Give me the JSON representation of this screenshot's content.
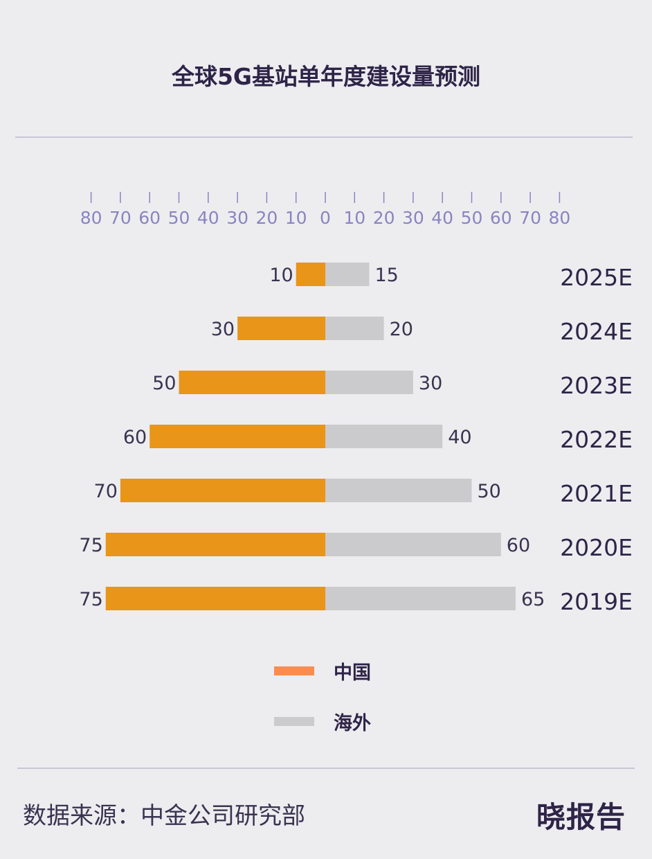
{
  "title": "全球5G基站单年度建设量预测",
  "chart_data": {
    "type": "bar",
    "orientation": "horizontal-diverging",
    "title": "全球5G基站单年度建设量预测",
    "categories": [
      "2025E",
      "2024E",
      "2023E",
      "2022E",
      "2021E",
      "2020E",
      "2019E"
    ],
    "series": [
      {
        "name": "中国",
        "values": [
          10,
          30,
          50,
          60,
          70,
          75,
          75
        ],
        "color": "#e8951a",
        "side": "left"
      },
      {
        "name": "海外",
        "values": [
          15,
          20,
          30,
          40,
          50,
          60,
          65
        ],
        "color": "#cbcbcd",
        "side": "right"
      }
    ],
    "xlim": [
      -80,
      80
    ],
    "ticks": [
      80,
      70,
      60,
      50,
      40,
      30,
      20,
      10,
      0,
      10,
      20,
      30,
      40,
      50,
      60,
      70,
      80
    ],
    "legend_position": "bottom",
    "grid": false,
    "tick_color": "#8a84c0",
    "label_color": "#3a3350",
    "category_color": "#2e2448"
  },
  "legend": [
    {
      "label": "中国",
      "color": "#fa8c50"
    },
    {
      "label": "海外",
      "color": "#cbcbcd"
    }
  ],
  "footer": {
    "source": "数据来源：中金公司研究部",
    "brand": "晓报告"
  }
}
